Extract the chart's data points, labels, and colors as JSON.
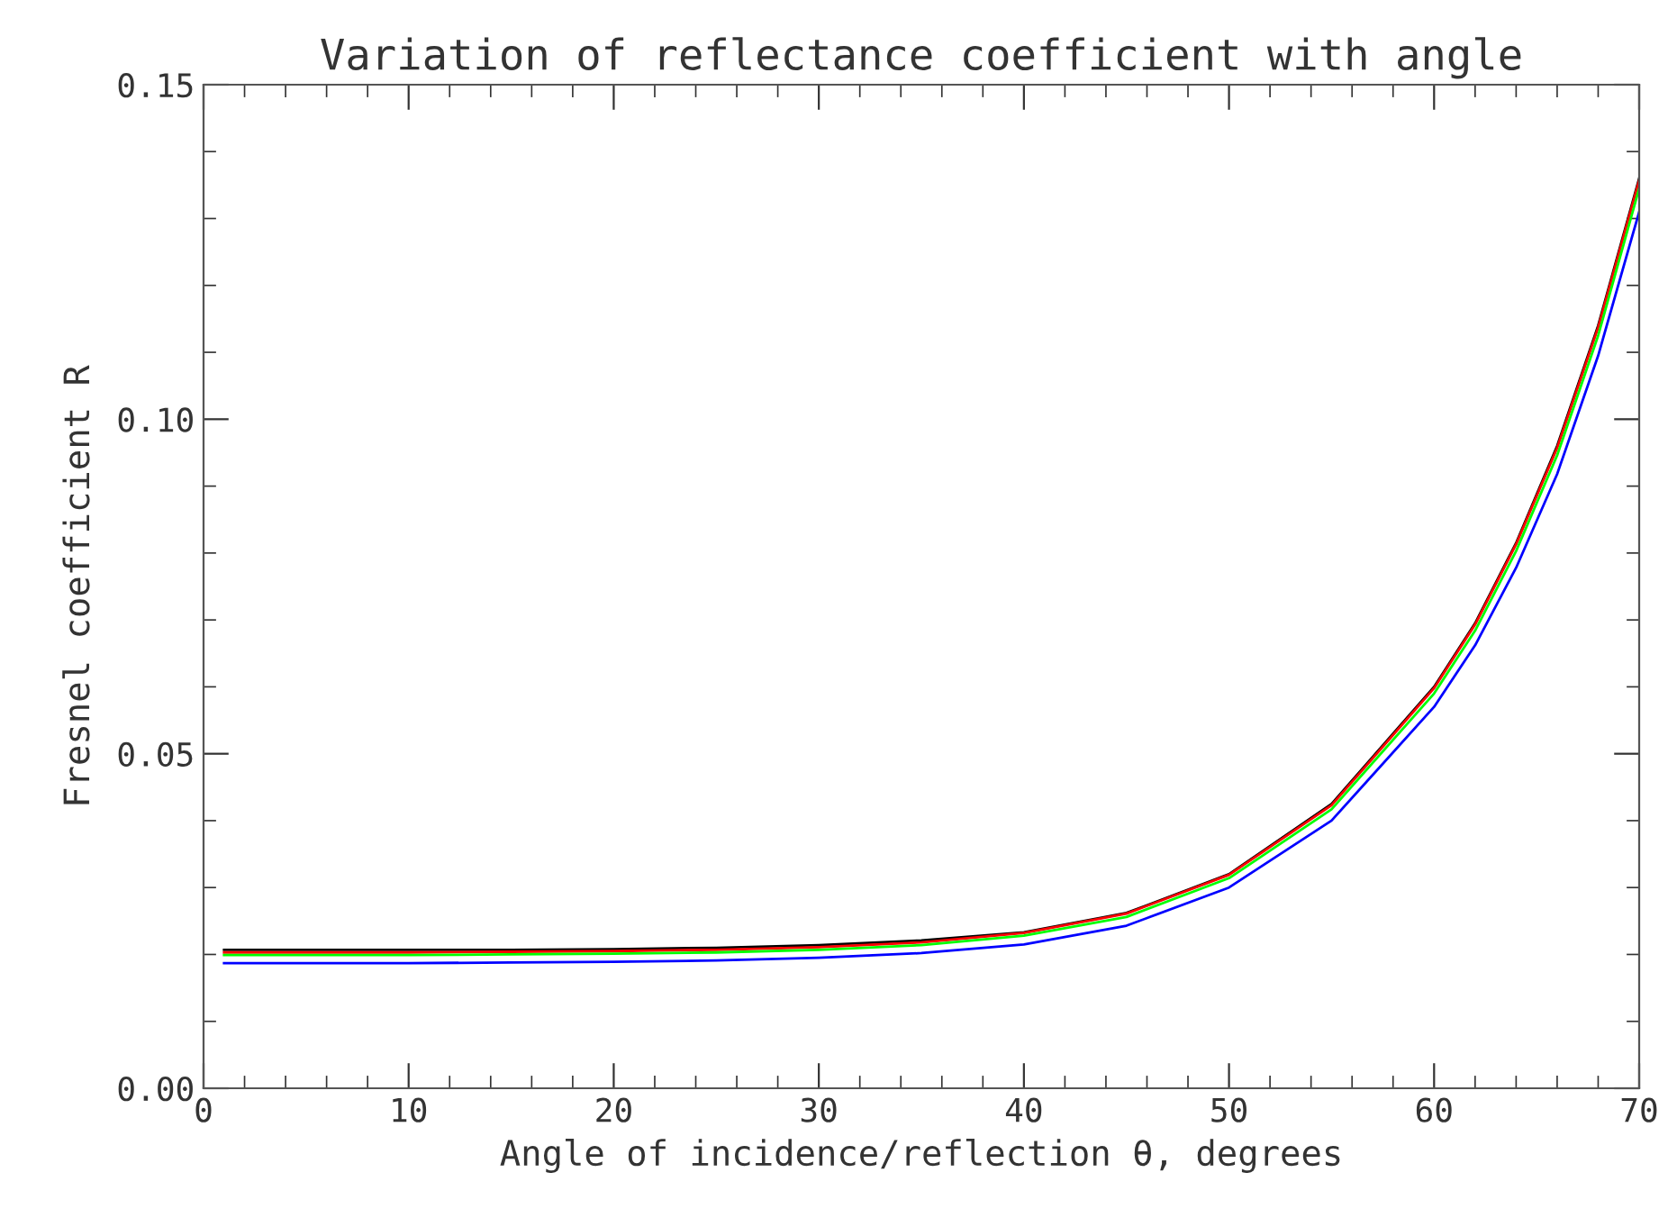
{
  "chart_data": {
    "type": "line",
    "title": "Variation of reflectance coefficient with angle",
    "xlabel": "Angle of incidence/reflection θ, degrees",
    "ylabel": "Fresnel coefficient R",
    "x": [
      1,
      5,
      10,
      15,
      20,
      25,
      30,
      35,
      40,
      45,
      50,
      55,
      60,
      62,
      64,
      66,
      68,
      70
    ],
    "series": [
      {
        "color": "#000000",
        "values": [
          0.0207,
          0.0207,
          0.0207,
          0.0207,
          0.0208,
          0.021,
          0.0214,
          0.0221,
          0.0233,
          0.0262,
          0.032,
          0.0425,
          0.06,
          0.0695,
          0.0815,
          0.096,
          0.114,
          0.136
        ]
      },
      {
        "color": "#ff0000",
        "values": [
          0.0203,
          0.0203,
          0.0203,
          0.0204,
          0.0205,
          0.0207,
          0.0211,
          0.0218,
          0.0232,
          0.0261,
          0.0319,
          0.0423,
          0.0598,
          0.0693,
          0.0813,
          0.0957,
          0.1137,
          0.1357
        ]
      },
      {
        "color": "#00ff00",
        "values": [
          0.0199,
          0.0199,
          0.0199,
          0.02,
          0.0201,
          0.0203,
          0.0207,
          0.0214,
          0.0228,
          0.0256,
          0.0314,
          0.0417,
          0.059,
          0.0684,
          0.0803,
          0.0946,
          0.1125,
          0.1345
        ]
      },
      {
        "color": "#0000ff",
        "values": [
          0.0187,
          0.0187,
          0.0187,
          0.0188,
          0.0189,
          0.0191,
          0.0195,
          0.0202,
          0.0215,
          0.0243,
          0.03,
          0.04,
          0.057,
          0.0662,
          0.0778,
          0.0918,
          0.1095,
          0.131
        ]
      }
    ],
    "xlim": [
      0,
      70
    ],
    "xticks": [
      0,
      10,
      20,
      30,
      40,
      50,
      60,
      70
    ],
    "ylim": [
      0,
      0.15
    ],
    "yticks": [
      {
        "value": 0,
        "label": "0.00"
      },
      {
        "value": 0.05,
        "label": "0.05"
      },
      {
        "value": 0.1,
        "label": "0.10"
      },
      {
        "value": 0.15,
        "label": "0.15"
      }
    ],
    "grid": false,
    "legend": false,
    "marker": "none",
    "line_style": "solid"
  }
}
